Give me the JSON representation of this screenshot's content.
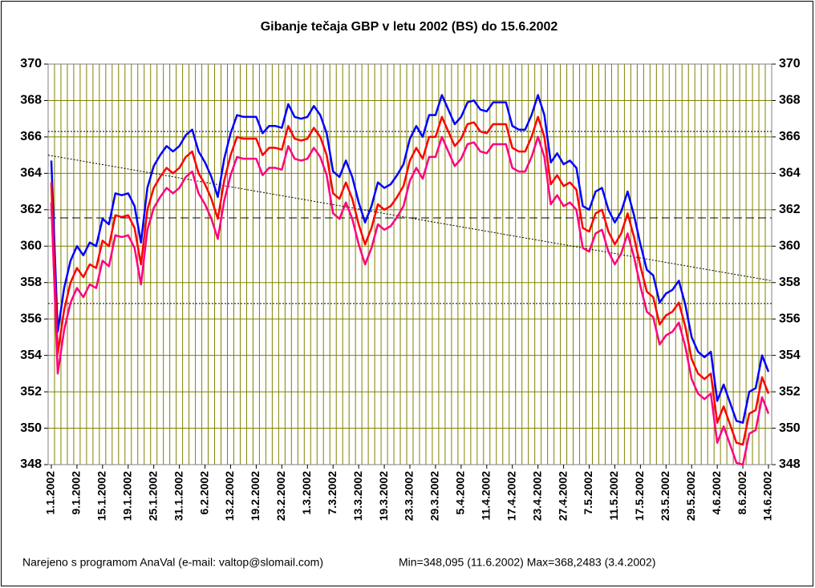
{
  "chart_data": {
    "type": "line",
    "title": "Gibanje tečaja GBP v letu 2002 (BS) do 15.6.2002",
    "footer": [
      "Narejeno s programom AnaVal (e-mail: valtop@slomail.com)",
      "Min=348,095 (11.6.2002) Max=368,2483 (3.4.2002)"
    ],
    "categories": [
      "1.1.2002",
      null,
      null,
      null,
      "9.1.2002",
      null,
      null,
      null,
      "15.1.2002",
      null,
      null,
      null,
      "19.1.2002",
      null,
      null,
      null,
      "25.1.2002",
      null,
      null,
      null,
      "31.1.2002",
      null,
      null,
      null,
      "6.2.2002",
      null,
      null,
      null,
      "13.2.2002",
      null,
      null,
      null,
      "19.2.2002",
      null,
      null,
      null,
      "23.2.2002",
      null,
      null,
      null,
      "1.3.2002",
      null,
      null,
      null,
      "7.3.2002",
      null,
      null,
      null,
      "13.3.2002",
      null,
      null,
      null,
      "19.3.2002",
      null,
      null,
      null,
      "23.3.2002",
      null,
      null,
      null,
      "29.3.2002",
      null,
      null,
      null,
      "5.4.2002",
      null,
      null,
      null,
      "11.4.2002",
      null,
      null,
      null,
      "17.4.2002",
      null,
      null,
      null,
      "23.4.2002",
      null,
      null,
      null,
      "27.4.2002",
      null,
      null,
      null,
      "7.5.2002",
      null,
      null,
      null,
      "11.5.2002",
      null,
      null,
      null,
      "17.5.2002",
      null,
      null,
      null,
      "23.5.2002",
      null,
      null,
      null,
      "29.5.2002",
      null,
      null,
      null,
      "4.6.2002",
      null,
      null,
      null,
      "8.6.2002",
      null,
      null,
      null,
      "14.6.2002"
    ],
    "series": [
      {
        "color": "#0000ff",
        "values": [
          364.7,
          355.3,
          357.7,
          359.2,
          360.0,
          359.5,
          360.2,
          360.0,
          361.5,
          361.2,
          362.9,
          362.8,
          362.9,
          362.2,
          360.2,
          363.2,
          364.4,
          365.0,
          365.5,
          365.2,
          365.5,
          366.1,
          366.4,
          365.2,
          364.6,
          363.8,
          362.7,
          364.8,
          366.2,
          367.2,
          367.1,
          367.1,
          367.1,
          366.2,
          366.6,
          366.6,
          366.5,
          367.8,
          367.1,
          367.0,
          367.1,
          367.7,
          367.2,
          366.2,
          364.1,
          363.8,
          364.7,
          363.8,
          362.4,
          361.3,
          362.2,
          363.5,
          363.2,
          363.4,
          363.9,
          364.5,
          365.9,
          366.6,
          366.0,
          367.2,
          367.2,
          368.3,
          367.5,
          366.7,
          367.1,
          367.9,
          368.0,
          367.5,
          367.4,
          367.9,
          367.9,
          367.9,
          366.6,
          366.4,
          366.4,
          367.2,
          368.3,
          367.2,
          364.6,
          365.1,
          364.5,
          364.7,
          364.3,
          362.2,
          362.0,
          363.0,
          363.2,
          362.0,
          361.3,
          361.9,
          363.0,
          361.7,
          360.1,
          358.7,
          358.4,
          356.9,
          357.4,
          357.6,
          358.1,
          356.8,
          355.0,
          354.2,
          353.9,
          354.2,
          351.5,
          352.4,
          351.4,
          350.4,
          350.3,
          352.0,
          352.2,
          354.0,
          353.1
        ]
      },
      {
        "color": "#ff0000",
        "values": [
          363.5,
          354.1,
          356.5,
          358,
          358.8,
          358.3,
          359,
          358.8,
          360.3,
          360,
          361.7,
          361.6,
          361.7,
          361,
          359,
          362,
          363.2,
          363.8,
          364.3,
          364,
          364.3,
          364.9,
          365.2,
          364,
          363.4,
          362.6,
          361.5,
          363.6,
          365,
          366,
          365.9,
          365.9,
          365.9,
          365,
          365.4,
          365.4,
          365.3,
          366.6,
          365.9,
          365.8,
          365.9,
          366.5,
          366,
          365,
          362.9,
          362.6,
          363.5,
          362.6,
          361.2,
          360.1,
          361,
          362.3,
          362,
          362.2,
          362.7,
          363.3,
          364.7,
          365.4,
          364.8,
          366,
          366,
          367.1,
          366.3,
          365.5,
          365.9,
          366.7,
          366.8,
          366.3,
          366.2,
          366.7,
          366.7,
          366.7,
          365.4,
          365.2,
          365.2,
          366,
          367.1,
          366,
          363.4,
          363.9,
          363.3,
          363.5,
          363.1,
          361,
          360.8,
          361.8,
          362,
          360.8,
          360.1,
          360.7,
          361.8,
          360.5,
          358.9,
          357.5,
          357.2,
          355.7,
          356.2,
          356.4,
          356.9,
          355.6,
          353.8,
          353,
          352.7,
          353,
          350.3,
          351.2,
          350.2,
          349.2,
          349.1,
          350.8,
          351,
          352.8,
          351.9
        ]
      },
      {
        "color": "#ff0080",
        "values": [
          362.4,
          353.0,
          355.4,
          356.9,
          357.7,
          357.2,
          357.9,
          357.7,
          359.2,
          358.9,
          360.6,
          360.5,
          360.6,
          359.9,
          357.9,
          360.9,
          362.1,
          362.7,
          363.2,
          362.9,
          363.2,
          363.8,
          364.1,
          362.9,
          362.3,
          361.5,
          360.4,
          362.5,
          363.9,
          364.9,
          364.8,
          364.8,
          364.8,
          363.9,
          364.3,
          364.3,
          364.2,
          365.5,
          364.8,
          364.7,
          364.8,
          365.4,
          364.9,
          363.9,
          361.8,
          361.5,
          362.4,
          361.5,
          360.1,
          359.0,
          359.9,
          361.2,
          360.9,
          361.1,
          361.6,
          362.2,
          363.6,
          364.3,
          363.7,
          364.9,
          364.9,
          366.0,
          365.2,
          364.4,
          364.8,
          365.6,
          365.7,
          365.2,
          365.1,
          365.6,
          365.6,
          365.6,
          364.3,
          364.1,
          364.1,
          364.9,
          366.0,
          364.9,
          362.3,
          362.8,
          362.2,
          362.4,
          362.0,
          359.9,
          359.7,
          360.7,
          360.9,
          359.7,
          359.0,
          359.6,
          360.7,
          359.4,
          357.8,
          356.4,
          356.1,
          354.6,
          355.1,
          355.3,
          355.8,
          354.5,
          352.7,
          351.9,
          351.6,
          351.9,
          349.2,
          350.1,
          349.1,
          348.1,
          348.0,
          349.7,
          349.9,
          351.7,
          350.8
        ]
      }
    ],
    "trend": {
      "start": 365,
      "end": 358.1,
      "color": "#000000"
    },
    "hlines": [
      {
        "value": 361.55,
        "style": "dashed"
      },
      {
        "value": 366.3,
        "style": "dotted"
      },
      {
        "value": 356.85,
        "style": "dotted"
      }
    ],
    "ylim": [
      348,
      370
    ],
    "yticks": [
      348,
      350,
      352,
      354,
      356,
      358,
      360,
      362,
      364,
      366,
      368,
      370
    ],
    "grid": true,
    "grid_color": "#808000"
  }
}
